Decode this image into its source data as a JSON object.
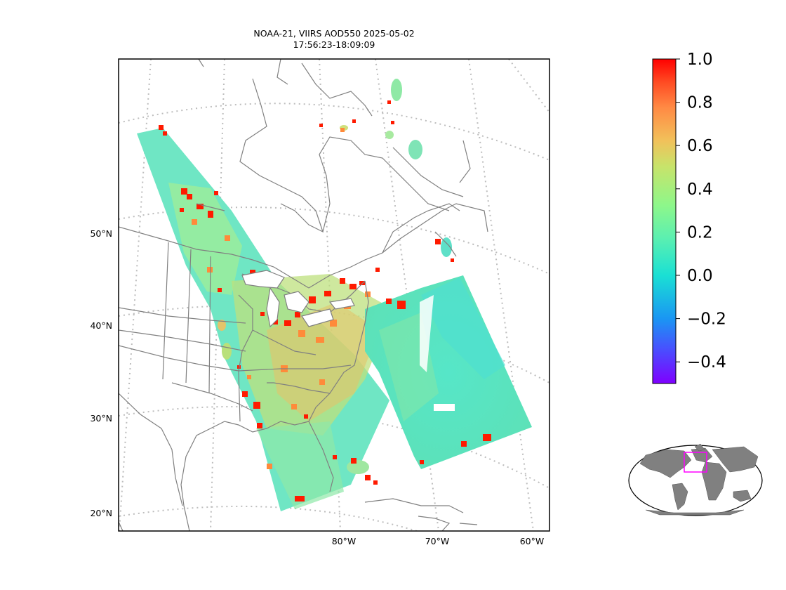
{
  "title": {
    "line1": "NOAA-21, VIIRS AOD550 2025-05-02",
    "line2": "17:56:23-18:09:09"
  },
  "map": {
    "projection": "lambert-conformal",
    "region": "Eastern North America",
    "lat_labels": [
      "50°N",
      "40°N",
      "30°N",
      "20°N"
    ],
    "lon_labels": [
      "80°W",
      "70°W",
      "60°W"
    ],
    "gridlines": "dotted",
    "coastline_color": "#808080",
    "swath_orientation": "northwest-southeast"
  },
  "colorbar": {
    "colormap": "rainbow",
    "min": -0.5,
    "max": 1.0,
    "ticks": [
      "1.0",
      "0.8",
      "0.6",
      "0.4",
      "0.2",
      "0.0",
      "−0.2",
      "−0.4"
    ],
    "tick_values": [
      1.0,
      0.8,
      0.6,
      0.4,
      0.2,
      0.0,
      -0.2,
      -0.4
    ],
    "colors": [
      "#7f00ff",
      "#3b64fe",
      "#0ab4ec",
      "#42efc6",
      "#7ffff0",
      "#9cf57f",
      "#cadc71",
      "#f7bc58",
      "#ff7f40",
      "#ff3b1e",
      "#ff0000"
    ]
  },
  "inset": {
    "type": "world-locator",
    "land_color": "#808080",
    "highlight_color": "#ff00ff"
  }
}
